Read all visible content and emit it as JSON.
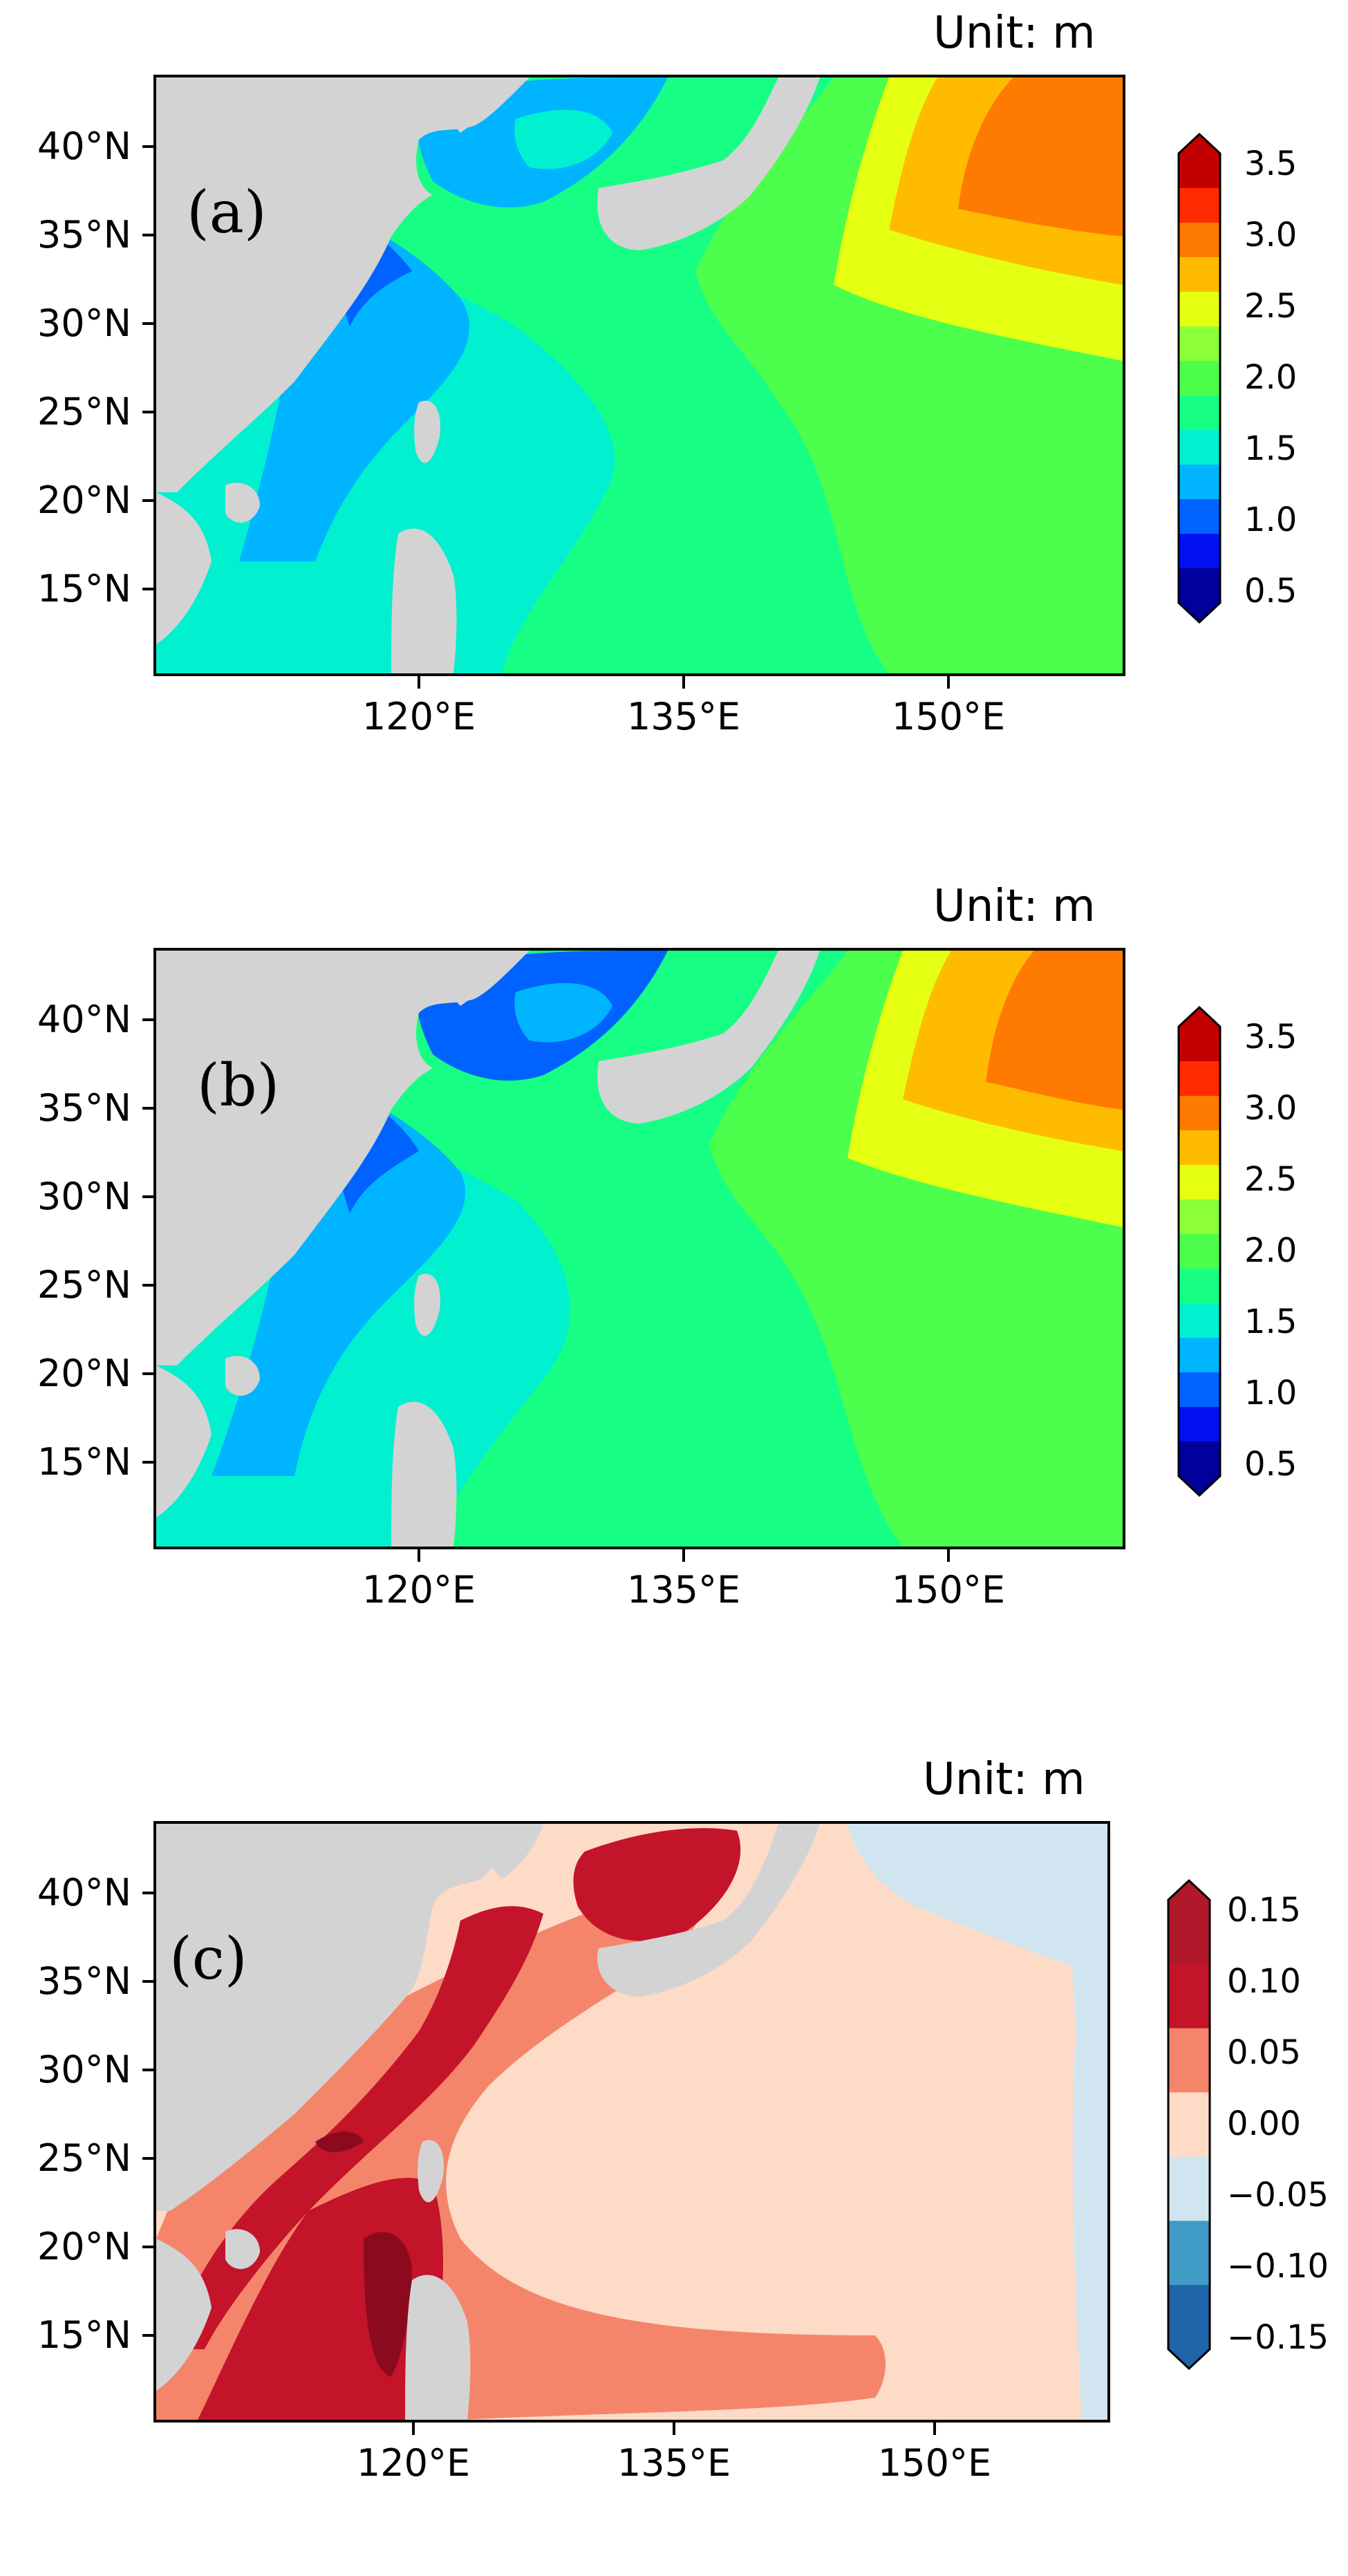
{
  "panels": [
    {
      "id": "a",
      "label": "(a)",
      "unit_text": "Unit: m",
      "region": {
        "lon_min": 105,
        "lon_max": 160,
        "lat_min": 10,
        "lat_max": 44
      },
      "lat_ticks": [
        "40°N",
        "35°N",
        "30°N",
        "25°N",
        "20°N",
        "15°N"
      ],
      "lon_ticks": [
        "120°E",
        "135°E",
        "150°E"
      ],
      "colorbar": {
        "ticks": [
          "3.5",
          "3.0",
          "2.5",
          "2.0",
          "1.5",
          "1.0",
          "0.5"
        ],
        "levels_top_to_bottom": [
          "#c30000",
          "#ff2a00",
          "#ff7a00",
          "#ffbb00",
          "#e4ff12",
          "#8cff38",
          "#4bff4c",
          "#16ff84",
          "#00f0d0",
          "#00b4ff",
          "#0062ff",
          "#0010f0",
          "#00009a"
        ],
        "extend": "both"
      }
    },
    {
      "id": "b",
      "label": "(b)",
      "unit_text": "Unit: m",
      "region": {
        "lon_min": 105,
        "lon_max": 160,
        "lat_min": 10,
        "lat_max": 44
      },
      "lat_ticks": [
        "40°N",
        "35°N",
        "30°N",
        "25°N",
        "20°N",
        "15°N"
      ],
      "lon_ticks": [
        "120°E",
        "135°E",
        "150°E"
      ],
      "colorbar": {
        "ticks": [
          "3.5",
          "3.0",
          "2.5",
          "2.0",
          "1.5",
          "1.0",
          "0.5"
        ],
        "levels_top_to_bottom": [
          "#c30000",
          "#ff2a00",
          "#ff7a00",
          "#ffbb00",
          "#e4ff12",
          "#8cff38",
          "#4bff4c",
          "#16ff84",
          "#00f0d0",
          "#00b4ff",
          "#0062ff",
          "#0010f0",
          "#00009a"
        ],
        "extend": "both"
      }
    },
    {
      "id": "c",
      "label": "(c)",
      "unit_text": "Unit: m",
      "region": {
        "lon_min": 105,
        "lon_max": 160,
        "lat_min": 10,
        "lat_max": 44
      },
      "lat_ticks": [
        "40°N",
        "35°N",
        "30°N",
        "25°N",
        "20°N",
        "15°N"
      ],
      "lon_ticks": [
        "120°E",
        "135°E",
        "150°E"
      ],
      "colorbar": {
        "ticks": [
          "0.15",
          "0.10",
          "0.05",
          "0.00",
          "−0.05",
          "−0.10",
          "−0.15"
        ],
        "levels_top_to_bottom": [
          "#b2182b",
          "#c3142a",
          "#f4856b",
          "#fddbc7",
          "#d1e5f0",
          "#3f9ac6",
          "#1f63a8"
        ],
        "extend": "both"
      }
    }
  ],
  "colors": {
    "land": "#d3d3d3",
    "hs_low": "#0010f0",
    "hs_mid_low": "#00f0d0",
    "hs_mid": "#16ff84",
    "hs_mid_high": "#4bff4c",
    "hs_high": "#e4ff12",
    "hs_higher": "#ffbb00",
    "hs_peak": "#ff7a00",
    "diff_light": "#fddbc7",
    "diff_mid": "#f4856b",
    "diff_dark": "#c3142a",
    "diff_darker": "#8b0a1e",
    "diff_neg": "#d1e5f0"
  }
}
